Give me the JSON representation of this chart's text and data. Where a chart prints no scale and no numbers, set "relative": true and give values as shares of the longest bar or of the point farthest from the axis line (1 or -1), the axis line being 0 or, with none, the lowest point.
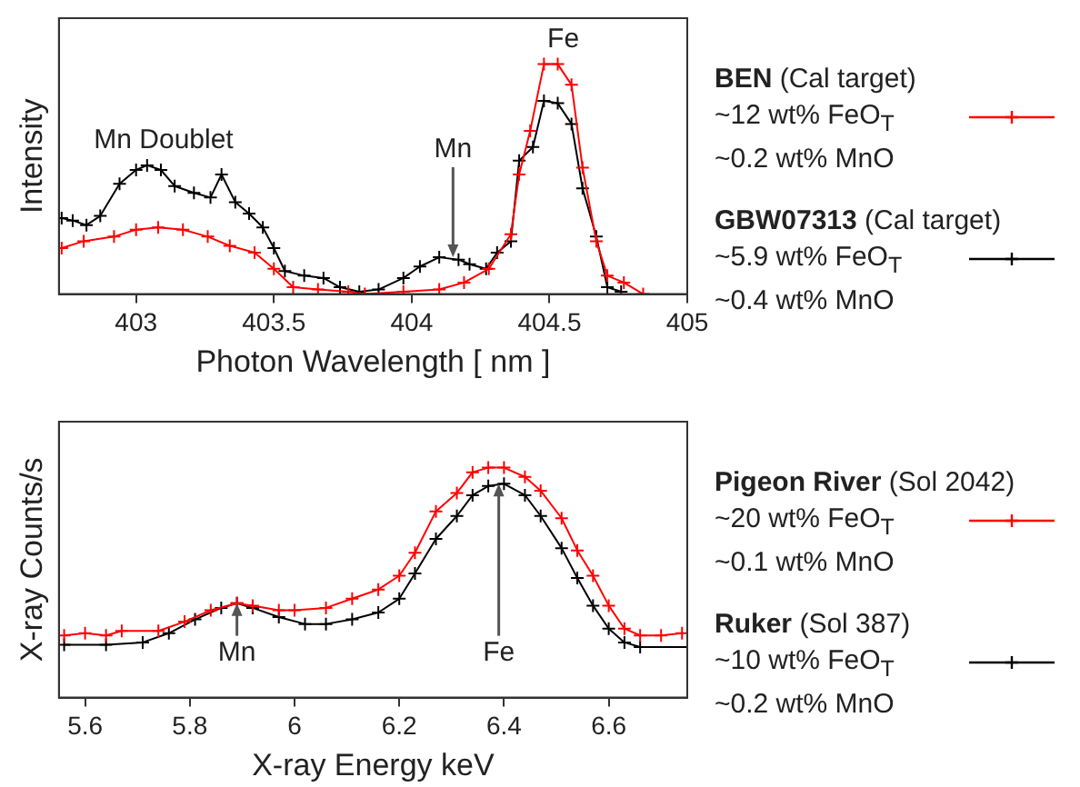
{
  "chart_data": [
    {
      "type": "line",
      "relative": true,
      "xlabel": "Photon Wavelength [ nm ]",
      "ylabel": "Intensity",
      "xlim": [
        402.72,
        405
      ],
      "xticks": [
        403,
        403.5,
        404,
        404.5,
        405
      ],
      "grid": false,
      "legend": "right",
      "marker": "cross",
      "annotations": [
        {
          "text": "Mn Doublet",
          "x": 403.1,
          "y": 0.56
        },
        {
          "text": "Mn",
          "x": 404.15,
          "y": 0.16
        },
        {
          "text": "Fe",
          "x": 404.55,
          "y": 1.0
        }
      ],
      "series": [
        {
          "name": "BEN (Cal target)\n~12 wt% FeO$_{T}$\n~0.2 wt% MnO",
          "color": "#ff0000",
          "x": [
            402.73,
            402.81,
            402.92,
            403.0,
            403.08,
            403.17,
            403.26,
            403.34,
            403.43,
            403.5,
            403.57,
            403.66,
            403.77,
            403.83,
            403.97,
            404.1,
            404.19,
            404.28,
            404.36,
            404.39,
            404.43,
            404.48,
            404.53,
            404.58,
            404.62,
            404.67,
            404.71,
            404.77,
            404.84
          ],
          "values": [
            0.2,
            0.23,
            0.25,
            0.28,
            0.29,
            0.28,
            0.25,
            0.21,
            0.18,
            0.11,
            0.03,
            0.02,
            0.01,
            0,
            0.01,
            0.02,
            0.05,
            0.11,
            0.26,
            0.52,
            0.71,
            1.0,
            1.0,
            0.91,
            0.55,
            0.23,
            0.08,
            0.05,
            0
          ]
        },
        {
          "name": "GBW07313 (Cal target)\n~5.9 wt% FeO$_{T}$\n~0.4 wt% MnO",
          "color": "#000000",
          "x": [
            402.73,
            402.77,
            402.82,
            402.87,
            402.94,
            403.0,
            403.04,
            403.09,
            403.14,
            403.21,
            403.27,
            403.31,
            403.36,
            403.41,
            403.46,
            403.5,
            403.54,
            403.61,
            403.68,
            403.74,
            403.81,
            403.88,
            403.97,
            404.03,
            404.1,
            404.17,
            404.21,
            404.27,
            404.31,
            404.36,
            404.39,
            404.44,
            404.48,
            404.53,
            404.58,
            404.62,
            404.67,
            404.71,
            404.76
          ],
          "values": [
            0.33,
            0.32,
            0.3,
            0.34,
            0.48,
            0.54,
            0.56,
            0.54,
            0.47,
            0.44,
            0.42,
            0.52,
            0.4,
            0.35,
            0.29,
            0.2,
            0.1,
            0.08,
            0.07,
            0.03,
            0.01,
            0.02,
            0.07,
            0.12,
            0.16,
            0.15,
            0.13,
            0.11,
            0.18,
            0.23,
            0.58,
            0.64,
            0.84,
            0.83,
            0.74,
            0.46,
            0.25,
            0.03,
            0.01
          ]
        }
      ]
    },
    {
      "type": "line",
      "relative": true,
      "xlabel": "X-ray Energy keV",
      "ylabel": "X-ray Counts/s",
      "xlim": [
        5.55,
        6.75
      ],
      "xticks": [
        5.6,
        5.8,
        6,
        6.2,
        6.4,
        6.6
      ],
      "grid": false,
      "legend": "right",
      "marker": "cross",
      "annotations": [
        {
          "text": "Mn",
          "x": 5.89,
          "y": 0.41
        },
        {
          "text": "Fe",
          "x": 6.39,
          "y": 0.93
        }
      ],
      "series": [
        {
          "name": "Pigeon River (Sol 2042)\n~20 wt% FeO$_{T}$\n~0.1 wt% MnO",
          "color": "#ff0000",
          "x": [
            5.56,
            5.6,
            5.64,
            5.67,
            5.74,
            5.79,
            5.84,
            5.89,
            5.92,
            5.97,
            6.0,
            6.06,
            6.11,
            6.16,
            6.2,
            6.23,
            6.27,
            6.31,
            6.34,
            6.37,
            6.4,
            6.44,
            6.47,
            6.51,
            6.54,
            6.57,
            6.6,
            6.63,
            6.66,
            6.7,
            6.74
          ],
          "values": [
            0.27,
            0.28,
            0.27,
            0.29,
            0.29,
            0.33,
            0.38,
            0.41,
            0.4,
            0.38,
            0.38,
            0.39,
            0.43,
            0.47,
            0.53,
            0.63,
            0.81,
            0.89,
            0.98,
            1.0,
            1.0,
            0.96,
            0.9,
            0.78,
            0.64,
            0.53,
            0.4,
            0.3,
            0.27,
            0.27,
            0.28
          ]
        },
        {
          "name": "Ruker (Sol 387)\n~10 wt% FeO$_{T}$\n~0.2 wt% MnO",
          "color": "#000000",
          "x": [
            5.56,
            5.64,
            5.71,
            5.76,
            5.81,
            5.86,
            5.89,
            5.92,
            5.97,
            6.02,
            6.06,
            6.11,
            6.16,
            6.2,
            6.23,
            6.27,
            6.31,
            6.34,
            6.37,
            6.4,
            6.44,
            6.47,
            6.51,
            6.54,
            6.57,
            6.6,
            6.63,
            6.66,
            6.75
          ],
          "values": [
            0.23,
            0.23,
            0.24,
            0.28,
            0.34,
            0.39,
            0.41,
            0.39,
            0.35,
            0.32,
            0.32,
            0.34,
            0.37,
            0.43,
            0.54,
            0.69,
            0.79,
            0.88,
            0.92,
            0.93,
            0.88,
            0.79,
            0.65,
            0.52,
            0.4,
            0.3,
            0.24,
            0.22,
            0.22
          ]
        }
      ]
    }
  ]
}
